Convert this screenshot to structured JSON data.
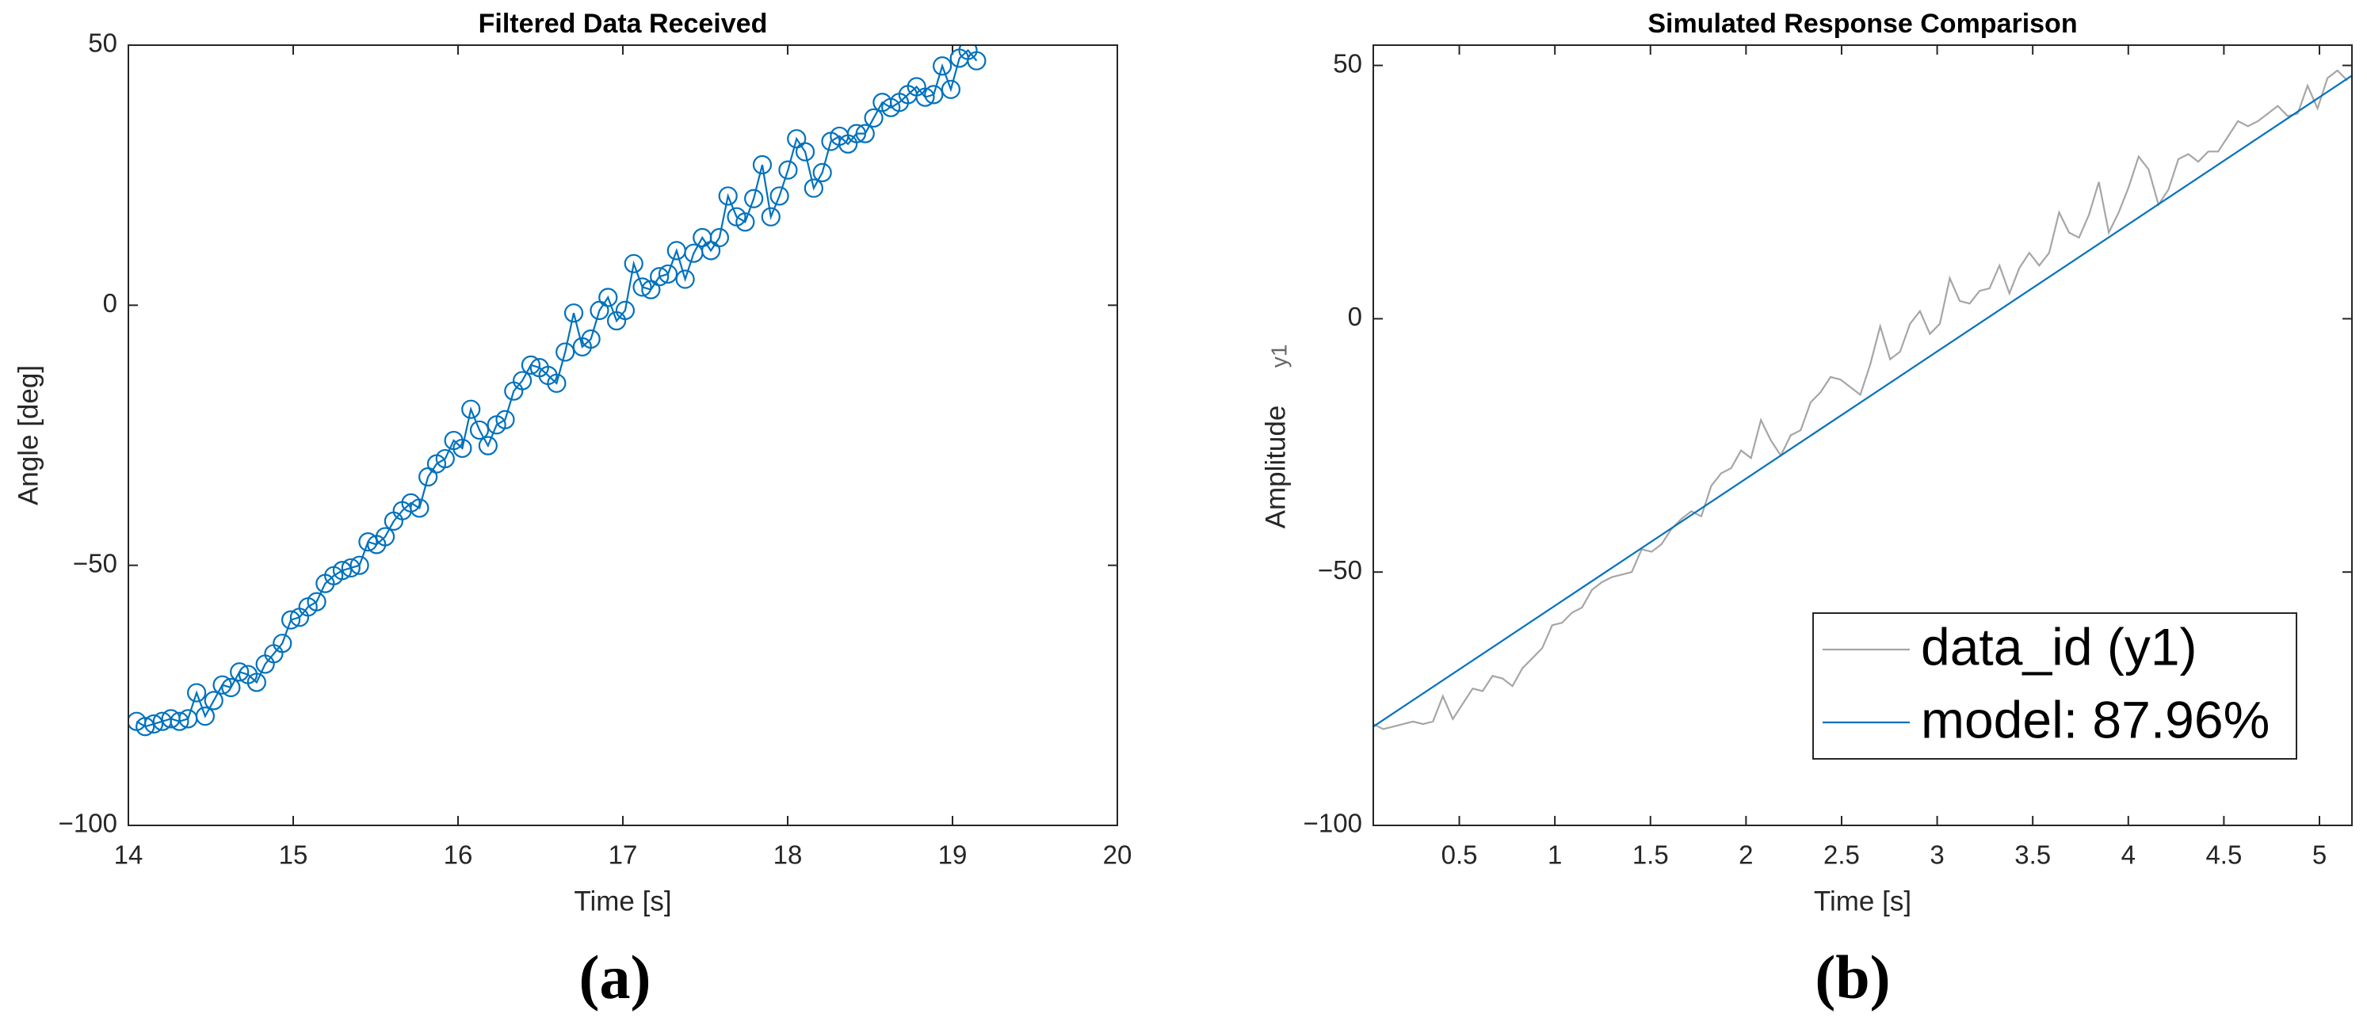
{
  "chart_data": [
    {
      "type": "line",
      "title": "Filtered Data Received",
      "xlabel": "Time [s]",
      "ylabel": "Angle [deg]",
      "label": "(a)",
      "xlim": [
        14,
        20
      ],
      "xticks": [
        14,
        15,
        16,
        17,
        18,
        19,
        20
      ],
      "ylim": [
        -100,
        50
      ],
      "yticks": [
        {
          "value": -100,
          "label": "−100"
        },
        {
          "value": -50,
          "label": "−50"
        },
        0,
        50
      ],
      "grid": false,
      "marker": "o",
      "x": [
        14.05,
        14.102,
        14.154,
        14.206,
        14.258,
        14.31,
        14.362,
        14.414,
        14.466,
        14.518,
        14.57,
        14.622,
        14.674,
        14.726,
        14.778,
        14.83,
        14.882,
        14.934,
        14.986,
        15.038,
        15.09,
        15.142,
        15.194,
        15.246,
        15.298,
        15.35,
        15.402,
        15.454,
        15.506,
        15.558,
        15.61,
        15.662,
        15.714,
        15.766,
        15.818,
        15.87,
        15.922,
        15.974,
        16.026,
        16.078,
        16.13,
        16.182,
        16.234,
        16.286,
        16.338,
        16.39,
        16.442,
        16.494,
        16.546,
        16.598,
        16.65,
        16.702,
        16.754,
        16.806,
        16.858,
        16.91,
        16.962,
        17.014,
        17.066,
        17.118,
        17.17,
        17.222,
        17.274,
        17.326,
        17.378,
        17.43,
        17.482,
        17.534,
        17.586,
        17.638,
        17.69,
        17.742,
        17.794,
        17.846,
        17.898,
        17.95,
        18.002,
        18.054,
        18.106,
        18.158,
        18.21,
        18.262,
        18.314,
        18.366,
        18.418,
        18.47,
        18.522,
        18.574,
        18.626,
        18.678,
        18.73,
        18.782,
        18.834,
        18.886,
        18.938,
        18.99,
        19.042,
        19.094,
        19.146
      ],
      "series": [
        {
          "color": "#0072bd",
          "values": [
            -80,
            -81,
            -80.5,
            -80,
            -79.5,
            -80,
            -79.5,
            -74.5,
            -79,
            -76,
            -73,
            -73.5,
            -70.5,
            -71,
            -72.5,
            -69,
            -67,
            -65,
            -60.5,
            -60,
            -58,
            -57,
            -53.5,
            -52,
            -51,
            -50.5,
            -50,
            -45.5,
            -46,
            -44.5,
            -41.5,
            -39.5,
            -38,
            -39,
            -33,
            -30.5,
            -29.5,
            -26,
            -27.5,
            -20,
            -24,
            -27,
            -23,
            -22,
            -16.5,
            -14.5,
            -11.5,
            -12,
            -13.5,
            -15,
            -9,
            -1.5,
            -8,
            -6.5,
            -1,
            1.5,
            -3,
            -1,
            8,
            3.5,
            3,
            5.5,
            6,
            10.5,
            5,
            10,
            13,
            10.5,
            13,
            21,
            17,
            16,
            20.5,
            27,
            17,
            21,
            26,
            32,
            29.5,
            22.5,
            25.5,
            31.5,
            32.5,
            31,
            33,
            33,
            36,
            39,
            38,
            39,
            40.5,
            42,
            40,
            40.5,
            46,
            41.5,
            47.5,
            49,
            47
          ]
        }
      ]
    },
    {
      "type": "line",
      "title": "Simulated Response Comparison",
      "xlabel": "Time [s]",
      "ylabel": "Amplitude",
      "output_name": "y1",
      "label": "(b)",
      "xlim": [
        0.05,
        5.17
      ],
      "xticks": [
        0.5,
        1,
        1.5,
        2,
        2.5,
        3,
        3.5,
        4,
        4.5,
        5
      ],
      "ylim": [
        -100,
        54
      ],
      "yticks": [
        {
          "value": -100,
          "label": "−100"
        },
        {
          "value": -50,
          "label": "−50"
        },
        0,
        50
      ],
      "grid": false,
      "legend": "southeast",
      "x": [
        0.05,
        0.102,
        0.154,
        0.206,
        0.258,
        0.31,
        0.362,
        0.414,
        0.466,
        0.518,
        0.57,
        0.622,
        0.674,
        0.726,
        0.778,
        0.83,
        0.882,
        0.934,
        0.986,
        1.038,
        1.09,
        1.142,
        1.194,
        1.246,
        1.298,
        1.35,
        1.402,
        1.454,
        1.506,
        1.558,
        1.61,
        1.662,
        1.714,
        1.766,
        1.818,
        1.87,
        1.922,
        1.974,
        2.026,
        2.078,
        2.13,
        2.182,
        2.234,
        2.286,
        2.338,
        2.39,
        2.442,
        2.494,
        2.546,
        2.598,
        2.65,
        2.702,
        2.754,
        2.806,
        2.858,
        2.91,
        2.962,
        3.014,
        3.066,
        3.118,
        3.17,
        3.222,
        3.274,
        3.326,
        3.378,
        3.43,
        3.482,
        3.534,
        3.586,
        3.638,
        3.69,
        3.742,
        3.794,
        3.846,
        3.898,
        3.95,
        4.002,
        4.054,
        4.106,
        4.158,
        4.21,
        4.262,
        4.314,
        4.366,
        4.418,
        4.47,
        4.522,
        4.574,
        4.626,
        4.678,
        4.73,
        4.782,
        4.834,
        4.886,
        4.938,
        4.99,
        5.042,
        5.094,
        5.146
      ],
      "series": [
        {
          "name": "data_id (y1)",
          "color": "#a6a6a6",
          "values": [
            -80,
            -81,
            -80.5,
            -80,
            -79.5,
            -80,
            -79.5,
            -74.5,
            -79,
            -76,
            -73,
            -73.5,
            -70.5,
            -71,
            -72.5,
            -69,
            -67,
            -65,
            -60.5,
            -60,
            -58,
            -57,
            -53.5,
            -52,
            -51,
            -50.5,
            -50,
            -45.5,
            -46,
            -44.5,
            -41.5,
            -39.5,
            -38,
            -39,
            -33,
            -30.5,
            -29.5,
            -26,
            -27.5,
            -20,
            -24,
            -27,
            -23,
            -22,
            -16.5,
            -14.5,
            -11.5,
            -12,
            -13.5,
            -15,
            -9,
            -1.5,
            -8,
            -6.5,
            -1,
            1.5,
            -3,
            -1,
            8,
            3.5,
            3,
            5.5,
            6,
            10.5,
            5,
            10,
            13,
            10.5,
            13,
            21,
            17,
            16,
            20.5,
            27,
            17,
            21,
            26,
            32,
            29.5,
            22.5,
            25.5,
            31.5,
            32.5,
            31,
            33,
            33,
            36,
            39,
            38,
            39,
            40.5,
            42,
            40,
            40.5,
            46,
            41.5,
            47.5,
            49,
            47
          ]
        },
        {
          "name": "model: 87.96%",
          "color": "#0072bd",
          "x": [
            0.05,
            5.17
          ],
          "values": [
            -80.5,
            48
          ]
        }
      ]
    }
  ]
}
